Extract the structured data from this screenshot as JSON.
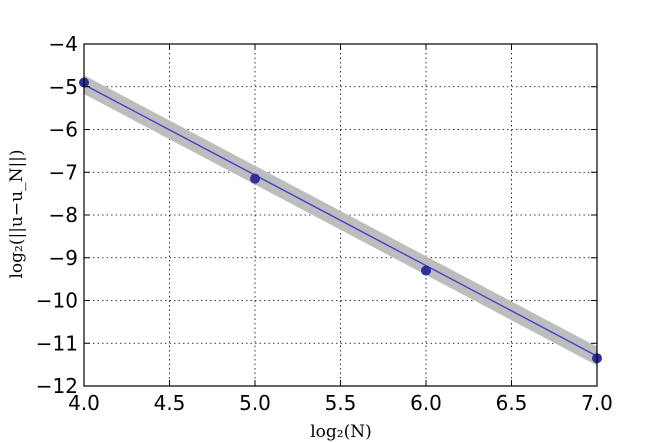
{
  "chart_data": {
    "type": "line",
    "xlabel": "log₂(N)",
    "ylabel": "log₂(||u−u_N||)",
    "xlim": [
      4.0,
      7.0
    ],
    "ylim": [
      -12,
      -4
    ],
    "x_ticks": [
      "4.0",
      "4.5",
      "5.0",
      "5.5",
      "6.0",
      "6.5",
      "7.0"
    ],
    "y_ticks": [
      "−4",
      "−5",
      "−6",
      "−7",
      "−8",
      "−9",
      "−10",
      "−11",
      "−12"
    ],
    "grid": true,
    "series": [
      {
        "x": [
          4.0,
          5.0,
          6.0,
          7.0
        ],
        "y": [
          -4.9,
          -7.15,
          -9.3,
          -11.35
        ],
        "fit": {
          "x": [
            4.0,
            7.0
          ],
          "y": [
            -4.95,
            -11.3
          ]
        },
        "band_half_width": 0.22,
        "line_color": "#4444cc",
        "marker_color": "#2f2f99",
        "band_color": "#bdbdbd"
      }
    ]
  }
}
